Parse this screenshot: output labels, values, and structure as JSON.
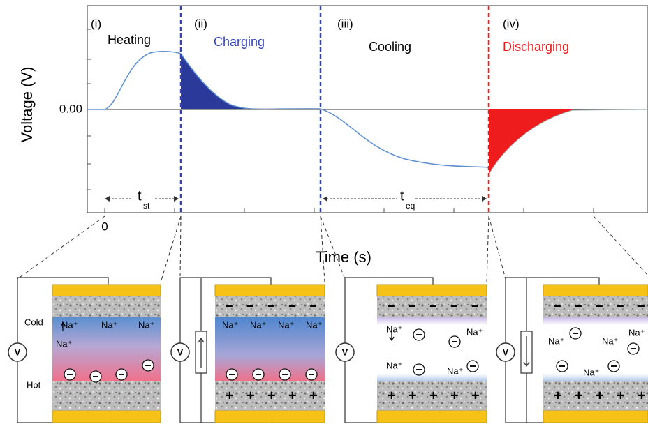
{
  "chart": {
    "y_label": "Voltage (V)",
    "x_label": "Time (s)",
    "y_tick": "0.00",
    "x_tick": "0",
    "phases": [
      {
        "number": "(i)",
        "name": "Heating"
      },
      {
        "number": "(ii)",
        "name": "Charging"
      },
      {
        "number": "(iii)",
        "name": "Cooling"
      },
      {
        "number": "(iv)",
        "name": "Discharging"
      }
    ],
    "intervals": [
      {
        "symbol": "t",
        "subscript": "st"
      },
      {
        "symbol": "t",
        "subscript": "eq"
      }
    ]
  },
  "panels": [
    {
      "meter": "V",
      "side_labels": [
        "Cold",
        "Hot"
      ],
      "ions": [
        "Na⁺",
        "Na⁺",
        "Na⁺",
        "Na⁺"
      ]
    },
    {
      "meter": "V",
      "ions": [
        "Na⁺",
        "Na⁺",
        "Na⁺",
        "Na⁺"
      ]
    },
    {
      "meter": "V",
      "ions": [
        "Na⁺",
        "Na⁺",
        "Na⁺",
        "Na⁺"
      ]
    },
    {
      "meter": "V",
      "ions": [
        "Na⁺",
        "Na⁺",
        "Na⁺",
        "Na⁺"
      ]
    }
  ]
}
